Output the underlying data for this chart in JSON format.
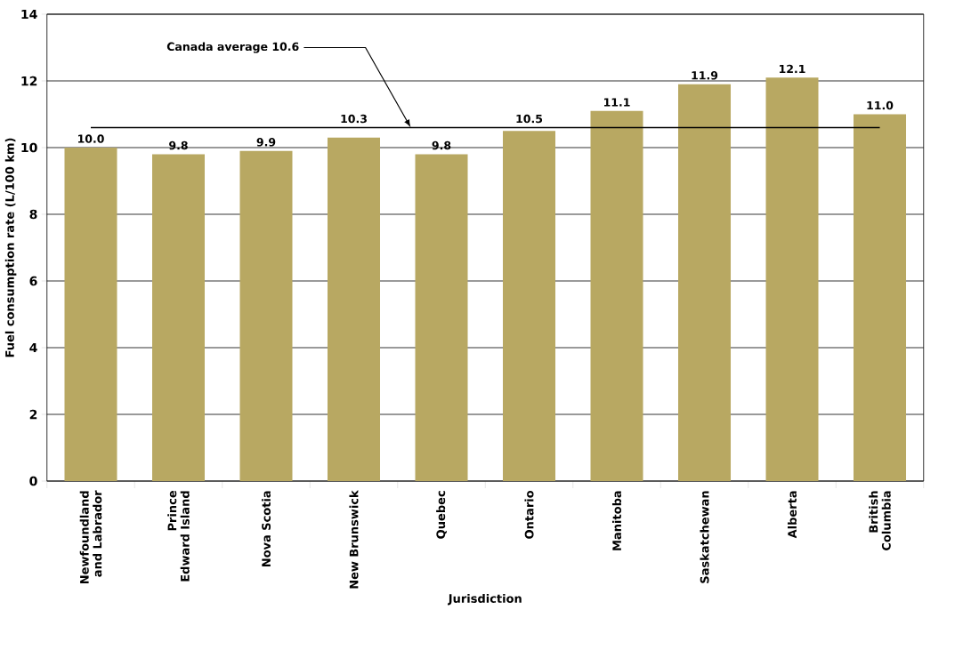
{
  "chart_data": {
    "type": "bar",
    "xlabel": "Jurisdiction",
    "ylabel": "Fuel consumption rate (L/100 km)",
    "categories": [
      "Newfoundland and Labrador",
      "Prince Edward Island",
      "Nova Scotia",
      "New Brunswick",
      "Quebec",
      "Ontario",
      "Manitoba",
      "Saskatchewan",
      "Alberta",
      "British Columbia"
    ],
    "values": [
      10.0,
      9.8,
      9.9,
      10.3,
      9.8,
      10.5,
      11.1,
      11.9,
      12.1,
      11.0
    ],
    "value_labels": [
      "10.0",
      "9.8",
      "9.9",
      "10.3",
      "9.8",
      "10.5",
      "11.1",
      "11.9",
      "12.1",
      "11.0"
    ],
    "color": "#b8a862",
    "ylim": [
      0,
      14
    ],
    "yticks": [
      0,
      2,
      4,
      6,
      8,
      10,
      12,
      14
    ],
    "grid": "y",
    "ref_lines": [
      {
        "axis": "y",
        "value": 10.6,
        "label": "Canada average 10.6",
        "color": "#000000"
      }
    ]
  }
}
